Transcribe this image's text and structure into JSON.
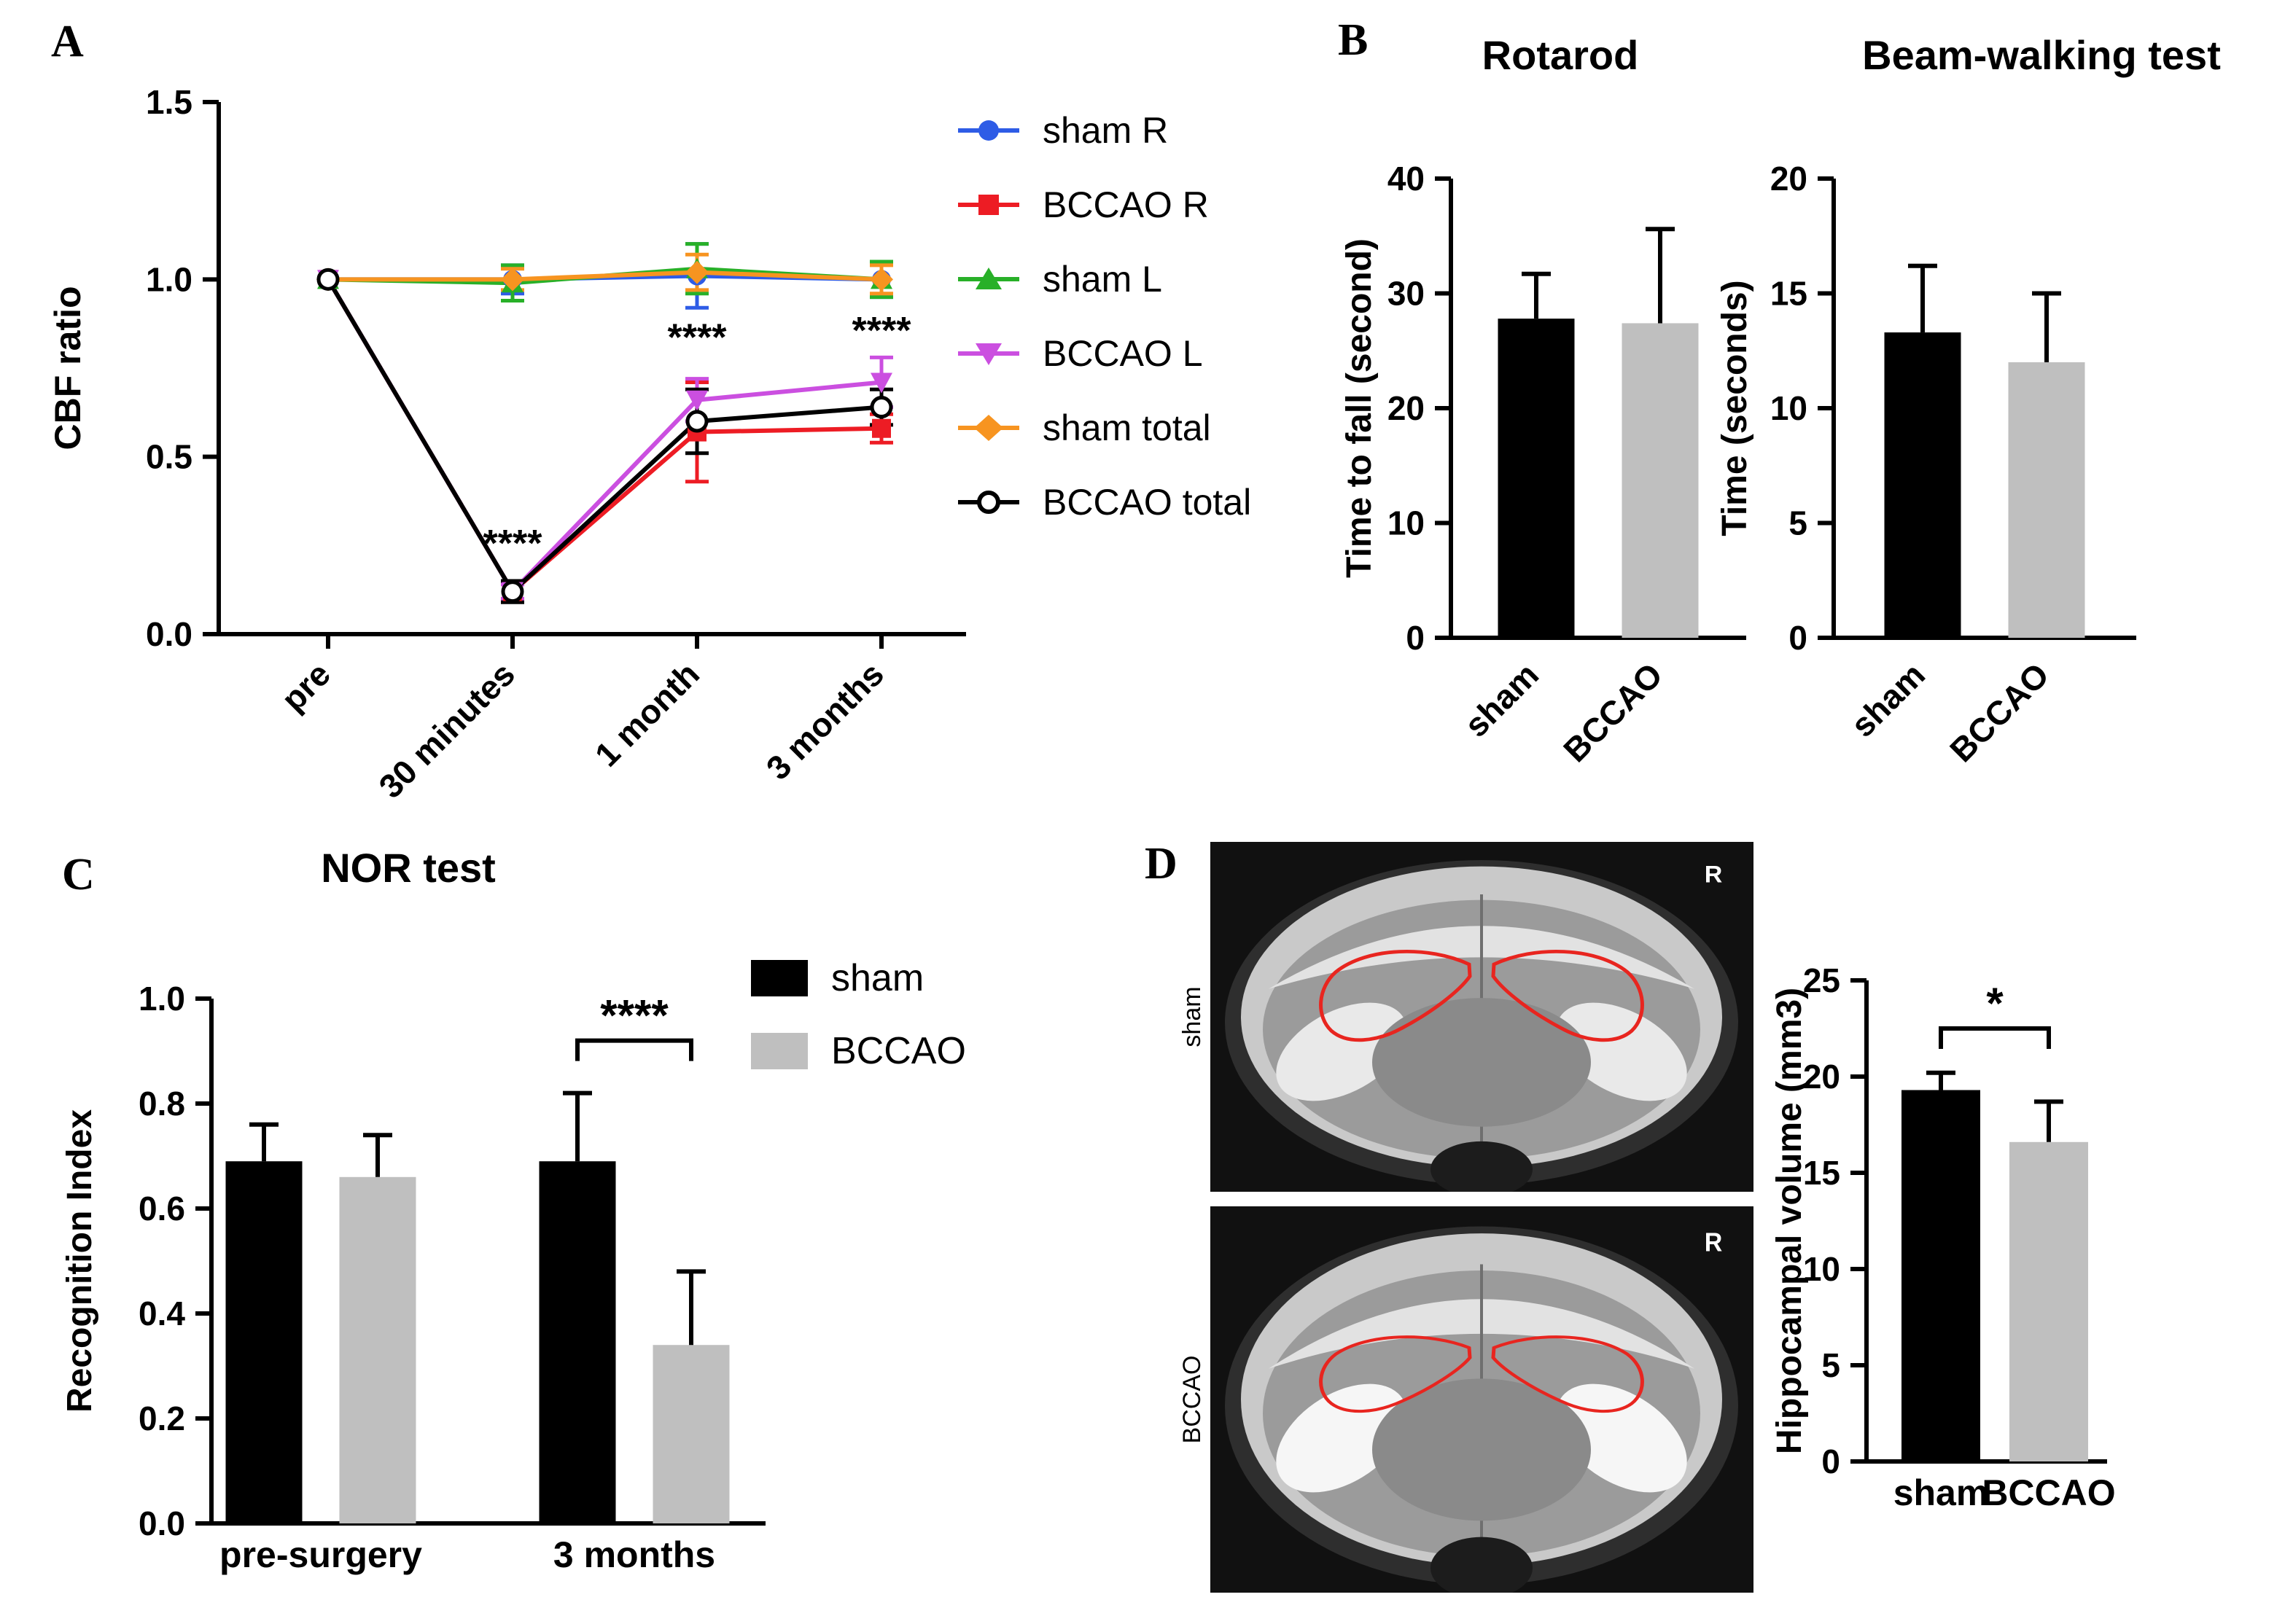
{
  "figure": {
    "panel_labels": {
      "A": "A",
      "B": "B",
      "C": "C",
      "D": "D"
    },
    "colors": {
      "sham_bar": "#000000",
      "bccao_bar": "#bfbfbf",
      "hippocampus_outline": "#e8251f"
    }
  },
  "chart_data": [
    {
      "id": "cbf",
      "type": "line",
      "title": "",
      "xlabel": "",
      "ylabel": "CBF ratio",
      "ylim": [
        0.0,
        1.5
      ],
      "yticks": [
        "0.0",
        "0.5",
        "1.0",
        "1.5"
      ],
      "categories": [
        "pre",
        "30 minutes",
        "1 month",
        "3 months"
      ],
      "legend_position": "right",
      "series": [
        {
          "name": "sham R",
          "color": "#2e5ce6",
          "marker": "circle",
          "values": [
            1.0,
            1.0,
            1.01,
            1.0
          ],
          "errors": [
            0.0,
            0.04,
            0.09,
            0.05
          ]
        },
        {
          "name": "BCCAO R",
          "color": "#ed1c24",
          "marker": "square",
          "values": [
            1.0,
            0.12,
            0.57,
            0.58
          ],
          "errors": [
            0.0,
            0.02,
            0.14,
            0.04
          ]
        },
        {
          "name": "sham L",
          "color": "#28b028",
          "marker": "triangle-up",
          "values": [
            1.0,
            0.99,
            1.03,
            1.0
          ],
          "errors": [
            0.0,
            0.05,
            0.07,
            0.05
          ]
        },
        {
          "name": "BCCAO L",
          "color": "#cb4fe0",
          "marker": "triangle-down",
          "values": [
            1.0,
            0.12,
            0.66,
            0.71
          ],
          "errors": [
            0.0,
            0.02,
            0.06,
            0.07
          ]
        },
        {
          "name": "sham total",
          "color": "#f79420",
          "marker": "diamond",
          "values": [
            1.0,
            1.0,
            1.02,
            1.0
          ],
          "errors": [
            0.0,
            0.03,
            0.05,
            0.04
          ]
        },
        {
          "name": "BCCAO total",
          "color": "#000000",
          "marker": "open-circle",
          "values": [
            1.0,
            0.12,
            0.6,
            0.64
          ],
          "errors": [
            0.0,
            0.03,
            0.09,
            0.05
          ]
        }
      ],
      "annotations": [
        {
          "category": "30 minutes",
          "y": 0.22,
          "text": "****"
        },
        {
          "category": "1 month",
          "y": 0.8,
          "text": "****"
        },
        {
          "category": "3 months",
          "y": 0.82,
          "text": "****"
        }
      ]
    },
    {
      "id": "rotarod",
      "type": "bar",
      "title": "Rotarod",
      "ylabel": "Time to fall (second)",
      "ylim": [
        0,
        40
      ],
      "yticks": [
        "0",
        "10",
        "20",
        "30",
        "40"
      ],
      "categories": [
        "sham",
        "BCCAO"
      ],
      "values": [
        27.8,
        27.4
      ],
      "errors": [
        3.9,
        8.2
      ],
      "bar_colors": [
        "#000000",
        "#bfbfbf"
      ]
    },
    {
      "id": "beam",
      "type": "bar",
      "title": "Beam-walking test",
      "ylabel": "Time (seconds)",
      "ylim": [
        0,
        20
      ],
      "yticks": [
        "0",
        "5",
        "10",
        "15",
        "20"
      ],
      "categories": [
        "sham",
        "BCCAO"
      ],
      "values": [
        13.3,
        12.0
      ],
      "errors": [
        2.9,
        3.0
      ],
      "bar_colors": [
        "#000000",
        "#bfbfbf"
      ]
    },
    {
      "id": "nor",
      "type": "bar",
      "title": "NOR test",
      "ylabel": "Recognition Index",
      "ylim": [
        0.0,
        1.0
      ],
      "yticks": [
        "0.0",
        "0.2",
        "0.4",
        "0.6",
        "0.8",
        "1.0"
      ],
      "categories": [
        "pre-surgery",
        "3 months"
      ],
      "series": [
        {
          "name": "sham",
          "color": "#000000",
          "values": [
            0.69,
            0.69
          ],
          "errors": [
            0.07,
            0.13
          ]
        },
        {
          "name": "BCCAO",
          "color": "#bfbfbf",
          "values": [
            0.66,
            0.34
          ],
          "errors": [
            0.08,
            0.14
          ]
        }
      ],
      "significance": {
        "category": "3 months",
        "text": "****",
        "y": 0.92
      }
    },
    {
      "id": "hippocampal-volume",
      "type": "bar",
      "title": "",
      "ylabel": "Hippocampal volume (mm3)",
      "ylim": [
        0,
        25
      ],
      "yticks": [
        "0",
        "5",
        "10",
        "15",
        "20",
        "25"
      ],
      "categories": [
        "sham",
        "BCCAO"
      ],
      "values": [
        19.3,
        16.6
      ],
      "errors": [
        0.9,
        2.1
      ],
      "bar_colors": [
        "#000000",
        "#bfbfbf"
      ],
      "significance": {
        "text": "*",
        "y": 22.5
      }
    }
  ],
  "mri": {
    "rows": [
      {
        "label": "sham",
        "orientation_marker": "R"
      },
      {
        "label": "BCCAO",
        "orientation_marker": "R"
      }
    ]
  }
}
